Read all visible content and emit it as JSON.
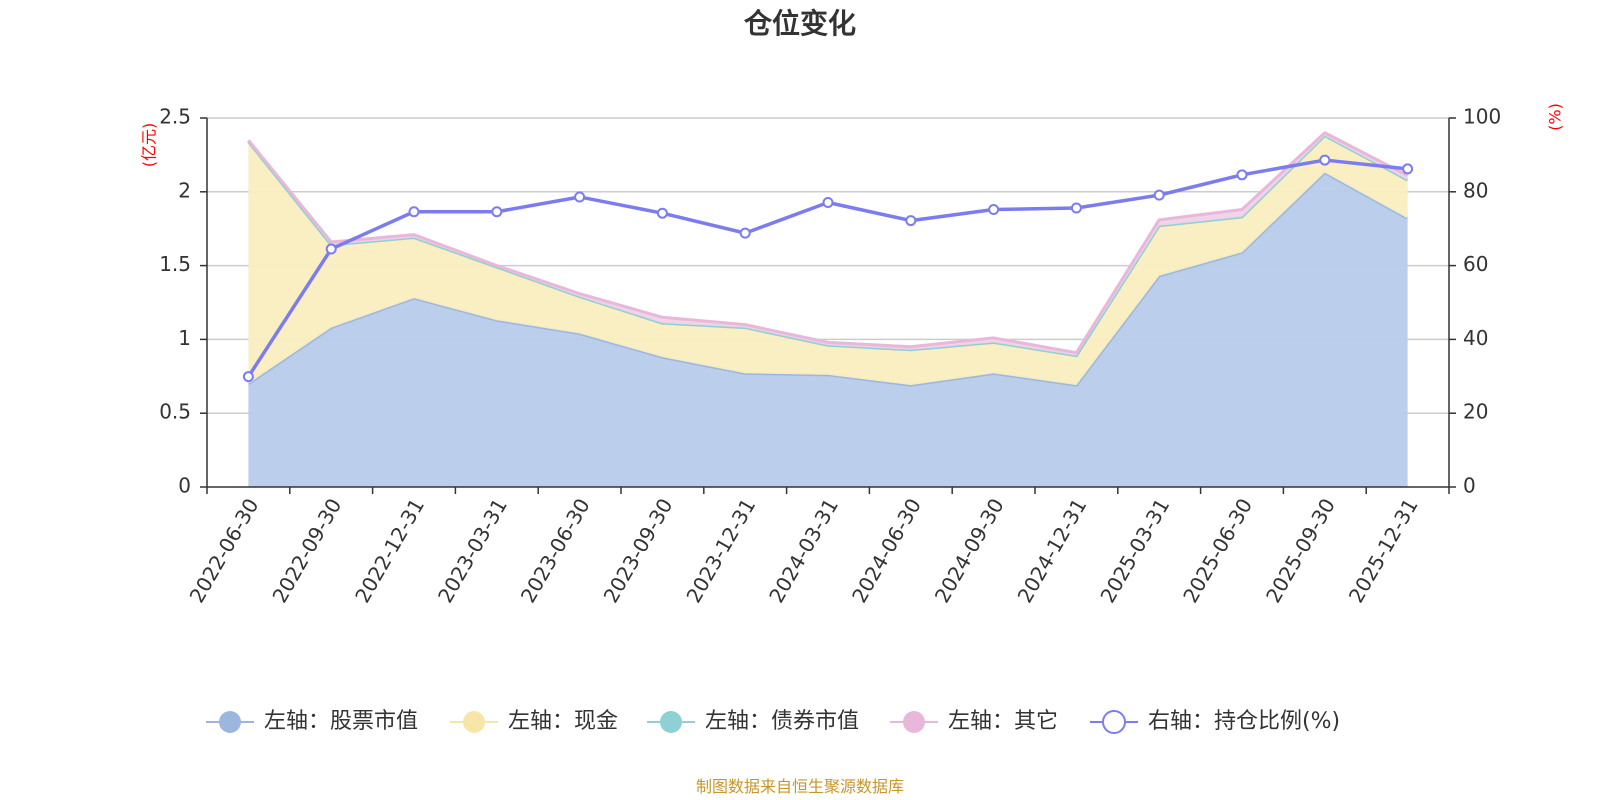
{
  "chart_data": {
    "type": "area",
    "title": "仓位变化",
    "source_note": "制图数据来自恒生聚源数据库",
    "categories": [
      "2022-06-30",
      "2022-09-30",
      "2022-12-31",
      "2023-03-31",
      "2023-06-30",
      "2023-09-30",
      "2023-12-31",
      "2024-03-31",
      "2024-06-30",
      "2024-09-30",
      "2024-12-31",
      "2025-03-31",
      "2025-06-30",
      "2025-09-30",
      "2025-12-31"
    ],
    "left_axis": {
      "unit": "(亿元)",
      "ylim": [
        0,
        2.5
      ],
      "ticks": [
        "0",
        "0.5",
        "1",
        "1.5",
        "2",
        "2.5"
      ]
    },
    "right_axis": {
      "unit": "(%)",
      "ylim": [
        0,
        100
      ],
      "ticks": [
        "0",
        "20",
        "40",
        "60",
        "80",
        "100"
      ]
    },
    "grid": true,
    "legend_position": "bottom",
    "series": [
      {
        "name": "左轴：股票市值",
        "axis": "left",
        "stacked": true,
        "color": "#9bb7df",
        "fill": "#b7cceb",
        "values": [
          0.7,
          1.08,
          1.28,
          1.13,
          1.04,
          0.88,
          0.77,
          0.76,
          0.69,
          0.77,
          0.69,
          1.43,
          1.59,
          2.13,
          1.82
        ]
      },
      {
        "name": "左轴：现金",
        "axis": "left",
        "stacked": true,
        "color": "#f8e6a8",
        "fill": "#faedc0",
        "values": [
          1.64,
          0.56,
          0.41,
          0.36,
          0.25,
          0.23,
          0.31,
          0.2,
          0.24,
          0.21,
          0.2,
          0.34,
          0.24,
          0.25,
          0.26
        ]
      },
      {
        "name": "左轴：债券市值",
        "axis": "left",
        "stacked": true,
        "color": "#8fd0d4",
        "fill": "#b8e3e5",
        "values": [
          0,
          0,
          0,
          0,
          0,
          0,
          0,
          0,
          0,
          0,
          0,
          0,
          0,
          0,
          0
        ]
      },
      {
        "name": "左轴：其它",
        "axis": "left",
        "stacked": true,
        "color": "#e8b7da",
        "fill": "#f1d2e8",
        "values": [
          0.01,
          0.02,
          0.02,
          0.01,
          0.02,
          0.04,
          0.02,
          0.02,
          0.02,
          0.03,
          0.02,
          0.04,
          0.05,
          0.02,
          0.03
        ]
      },
      {
        "name": "右轴：持仓比例(%)",
        "axis": "right",
        "stacked": false,
        "color": "#7b7cef",
        "values": [
          29.9,
          64.5,
          74.6,
          74.6,
          78.6,
          74.2,
          68.8,
          77.1,
          72.2,
          75.2,
          75.6,
          79.1,
          84.6,
          88.6,
          86.2
        ]
      }
    ]
  }
}
